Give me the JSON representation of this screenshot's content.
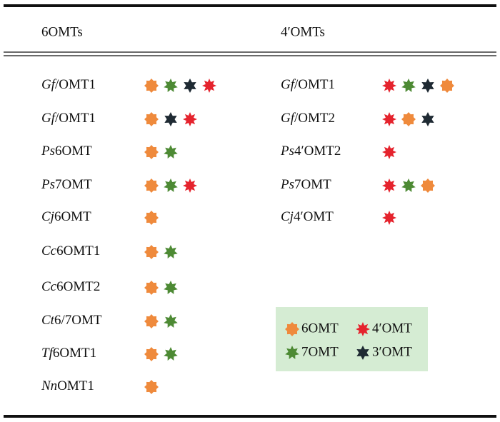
{
  "header": {
    "columns": [
      "6OMTs",
      "4′OMTs"
    ]
  },
  "legend": [
    {
      "label": "6OMT",
      "color": "#ef8a3c"
    },
    {
      "label": "4′OMT",
      "color": "#e5232d"
    },
    {
      "label": "7OMT",
      "color": "#4d8a34"
    },
    {
      "label": "3′OMT",
      "color": "#1f2a33"
    }
  ],
  "left": [
    {
      "italic": "Gf",
      "rest": "/OMT1",
      "stars": [
        "6OMT",
        "7OMT",
        "3′OMT",
        "4′OMT"
      ]
    },
    {
      "italic": "Gf",
      "rest": "/OMT1",
      "stars": [
        "6OMT",
        "3′OMT",
        "4′OMT"
      ]
    },
    {
      "italic": "Ps",
      "rest": "6OMT",
      "stars": [
        "6OMT",
        "7OMT"
      ]
    },
    {
      "italic": "Ps",
      "rest": "7OMT",
      "stars": [
        "6OMT",
        "7OMT",
        "4′OMT"
      ]
    },
    {
      "italic": "Cj",
      "rest": "6OMT",
      "stars": [
        "6OMT"
      ]
    },
    {
      "italic": "Cc",
      "rest": "6OMT1",
      "stars": [
        "6OMT",
        "7OMT"
      ]
    },
    {
      "italic": "Cc",
      "rest": "6OMT2",
      "stars": [
        "6OMT",
        "7OMT"
      ]
    },
    {
      "italic": "Ct",
      "rest": "6/7OMT",
      "stars": [
        "6OMT",
        "7OMT"
      ]
    },
    {
      "italic": "Tf",
      "rest": "6OMT1",
      "stars": [
        "6OMT",
        "7OMT"
      ]
    },
    {
      "italic": "Nn",
      "rest": "OMT1",
      "stars": [
        "6OMT"
      ]
    }
  ],
  "right": [
    {
      "italic": "Gf",
      "rest": "/OMT1",
      "stars": [
        "4′OMT",
        "7OMT",
        "3′OMT",
        "6OMT"
      ]
    },
    {
      "italic": "Gf",
      "rest": "/OMT2",
      "stars": [
        "4′OMT",
        "6OMT",
        "3′OMT"
      ]
    },
    {
      "italic": "Ps",
      "rest": "4′OMT2",
      "stars": [
        "4′OMT"
      ]
    },
    {
      "italic": "Ps",
      "rest": "7OMT",
      "stars": [
        "4′OMT",
        "7OMT",
        "6OMT"
      ]
    },
    {
      "italic": "Cj",
      "rest": "4′OMT",
      "stars": [
        "4′OMT"
      ]
    }
  ]
}
